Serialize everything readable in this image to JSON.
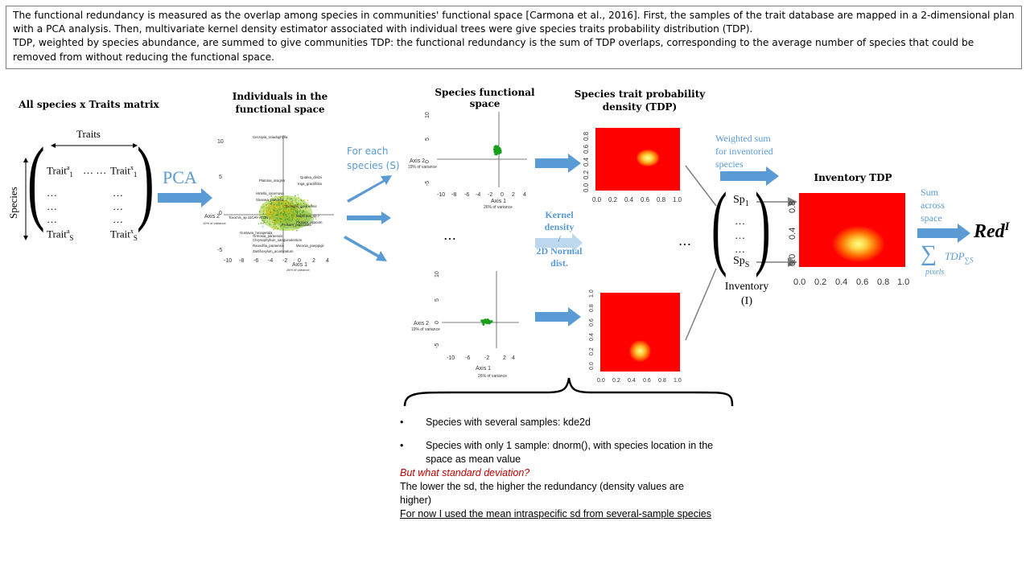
{
  "intro": {
    "line1": "The functional redundancy is measured as the overlap among species in communities' functional space [Carmona et al., 2016].  First, the samples of the trait database are mapped in a 2-dimensional plan with a PCA analysis. Then, multivariate kernel density estimator associated with individual trees were give species traits probability distribution (TDP).",
    "line2": "TDP, weighted by species abundance, are summed to give communities TDP: the functional redundancy is the sum of TDP overlaps,  corresponding to the average number of species that could be removed from without reducing the functional space."
  },
  "matrix": {
    "title": "All species x Traits matrix",
    "traits_label": "Traits",
    "species_label": "Species",
    "row1_left": "Trait",
    "row1_left_sup": "a",
    "row1_left_sub": "1",
    "row1_mid": "…  …",
    "row1_right": "Trait",
    "row1_right_sup": "x",
    "row1_right_sub": "1",
    "dots": "…",
    "rowS_left": "Trait",
    "rowS_left_sup": "a",
    "rowS_left_sub": "S",
    "rowS_right": "Trait",
    "rowS_right_sup": "x",
    "rowS_right_sub": "S"
  },
  "pca": {
    "label": "PCA",
    "title_line1": "Individuals in the",
    "title_line2": "functional space",
    "species_labels": [
      "Cecropia_sciadophylla",
      "Platonia_insignis",
      "Qualea_dinizii",
      "Inga_gracilifolia",
      "Hirtella_racemosa",
      "Sloanea_pandelia",
      "Tachigali_guianensis",
      "Toxomis_sp.11CAY-ATDN",
      "Maytenus_sp.7",
      "Protium_opacum",
      "Gustavia_hexapetala",
      "Ormosia_paraensis",
      "Protium_paniculata",
      "Chrysophyllum_sanguinolentum",
      "Rauvolfia_paraensis",
      "Miconia_poeppigii",
      "Zanthoxylum_acuminatum"
    ],
    "axis2": "Axis 2",
    "axis2_var": "19% of variance",
    "axis1": "Axis 1",
    "axis1_var": "26% of variance",
    "yticks": [
      "10",
      "5",
      "0",
      "-5"
    ],
    "xticks": [
      "-10",
      "-8",
      "-6",
      "-4",
      "-2",
      "0",
      "2",
      "4"
    ]
  },
  "for_each": {
    "line1": "For each",
    "line2": "species (S)"
  },
  "species_space": {
    "title": "Species functional space",
    "yticks": [
      "10",
      "5",
      "0",
      "-5"
    ],
    "xticks_top": [
      "-10",
      "-8",
      "-6",
      "-4",
      "-2",
      "0",
      "2",
      "4"
    ],
    "xticks_bottom": [
      "-10",
      "-6",
      "-2",
      "2",
      "4"
    ],
    "axis2": "Axis 2",
    "axis2_var": "19% of variance",
    "axis1": "Axis 1",
    "axis1_var": "26% of variance",
    "ellipsis": "…"
  },
  "kernel": {
    "line1": "Kernel",
    "line2": "density",
    "line3": "/",
    "line4": "2D Normal",
    "line5": "dist."
  },
  "tdp": {
    "title_line1": "Species trait probability",
    "title_line2": "density  (TDP)",
    "xticks": [
      "0.0",
      "0.2",
      "0.4",
      "0.6",
      "0.8",
      "1.0"
    ],
    "yticks": [
      "0.8",
      "0.6",
      "0.4",
      "0.2",
      "0.0"
    ],
    "yticks_bottom": [
      "1.0",
      "0.8",
      "0.6",
      "0.4",
      "0.2",
      "0.0"
    ],
    "ellipsis": "…"
  },
  "weighted": {
    "line1": "Weighted  sum",
    "line2": "for inventoried",
    "line3": "species"
  },
  "inventory": {
    "sp": "Sp",
    "sp1_sub": "1",
    "spS_sub": "S",
    "dots": "…",
    "label_line1": "Inventory",
    "label_line2": "(I)",
    "tdp_title": "Inventory  TDP",
    "xticks": [
      "0.0",
      "0.2",
      "0.4",
      "0.6",
      "0.8",
      "1.0"
    ],
    "yticks": [
      "0.8",
      "0.4",
      "0.0"
    ]
  },
  "sum": {
    "line1": "Sum",
    "line2": "across",
    "line3": "space",
    "red": "Red",
    "red_sup": "I",
    "sigma": "∑",
    "pixels": "pixels",
    "tdp": "TDP",
    "tdp_sub": "∑S"
  },
  "notes": {
    "bullet1": "Species with several samples:  kde2d",
    "bullet2_line1": "Species with only 1 sample: dnorm(), with species location in the",
    "bullet2_line2": "space as mean value",
    "question": "But what standard deviation?",
    "lower1": "The lower the sd, the higher the redundancy (density values are",
    "lower2": "higher)",
    "now": "For now I used the mean intraspecific sd from several-sample species"
  },
  "colors": {
    "accent": "#5b9bd5",
    "question": "#c00000",
    "heat_red": "#ff0000",
    "heat_yellow": "#ffff66",
    "points": "#1a9e1a"
  }
}
